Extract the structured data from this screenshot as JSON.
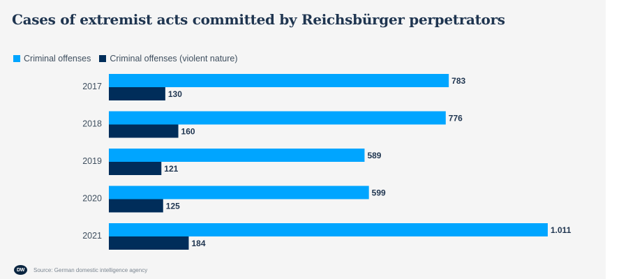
{
  "chart_data": {
    "type": "bar",
    "orientation": "horizontal",
    "title": "Cases of extremist acts committed by Reichsbürger perpetrators",
    "categories": [
      "2017",
      "2018",
      "2019",
      "2020",
      "2021"
    ],
    "series": [
      {
        "name": "Criminal offenses",
        "color": "#00a5ff",
        "values": [
          783,
          776,
          589,
          599,
          1011
        ],
        "labels": [
          "783",
          "776",
          "589",
          "599",
          "1.011"
        ]
      },
      {
        "name": "Criminal offenses (violent nature)",
        "color": "#002d5a",
        "values": [
          130,
          160,
          121,
          125,
          184
        ],
        "labels": [
          "130",
          "160",
          "121",
          "125",
          "184"
        ]
      }
    ],
    "xlim": [
      0,
      1011
    ],
    "grid": false,
    "legend_position": "top-left"
  },
  "footer": {
    "logo_text": "DW",
    "source": "Source: German domestic intelligence agency"
  }
}
